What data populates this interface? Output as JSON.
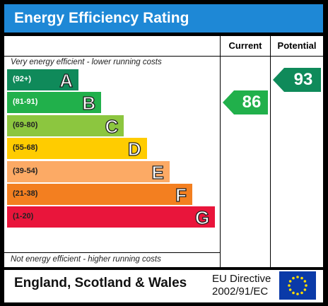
{
  "header": {
    "title": "Energy Efficiency Rating"
  },
  "columns": {
    "current": "Current",
    "potential": "Potential"
  },
  "notes": {
    "top": "Very energy efficient - lower running costs",
    "bottom": "Not energy efficient - higher running costs"
  },
  "footer": {
    "region": "England, Scotland & Wales",
    "directive_line1": "EU Directive",
    "directive_line2": "2002/91/EC"
  },
  "chart_data": {
    "type": "bar",
    "categories": [
      "A",
      "B",
      "C",
      "D",
      "E",
      "F",
      "G"
    ],
    "ranges": [
      "(92+)",
      "(81-91)",
      "(69-80)",
      "(55-68)",
      "(39-54)",
      "(21-38)",
      "(1-20)"
    ],
    "colors": [
      "#0f8a5a",
      "#21b04b",
      "#8cc63f",
      "#ffcc00",
      "#fcaa65",
      "#f37f20",
      "#e9153b"
    ],
    "current": {
      "value": 86,
      "band": "B",
      "color": "#21b04b"
    },
    "potential": {
      "value": 93,
      "band": "A",
      "color": "#0f8a5a"
    }
  }
}
